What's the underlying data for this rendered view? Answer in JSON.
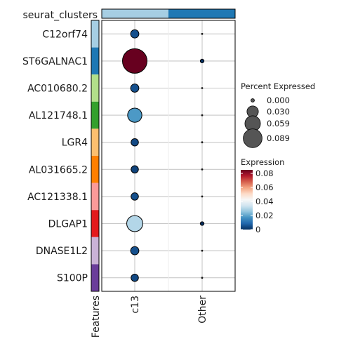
{
  "chart_data": {
    "type": "dotplot",
    "top_annotation_label": "seurat_clusters",
    "top_annotation": [
      {
        "group": "c13",
        "color": "#a6cee3"
      },
      {
        "group": "Other",
        "color": "#1f78b4"
      }
    ],
    "features_label": "Features",
    "groups": [
      "c13",
      "Other"
    ],
    "features": [
      "C12orf74",
      "ST6GALNAC1",
      "AC010680.2",
      "AL121748.1",
      "LGR4",
      "AL031665.2",
      "AC121338.1",
      "DLGAP1",
      "DNASE1L2",
      "S100P"
    ],
    "feature_colors": [
      "#a6cee3",
      "#1f78b4",
      "#b2df8a",
      "#33a02c",
      "#fdbf6f",
      "#ff7f00",
      "#fb9a99",
      "#e31a1c",
      "#cab2d6",
      "#6a3d9a"
    ],
    "pct_expressed": [
      [
        0.01,
        0.0
      ],
      [
        0.089,
        0.002
      ],
      [
        0.01,
        0.0
      ],
      [
        0.03,
        0.0
      ],
      [
        0.008,
        0.0
      ],
      [
        0.008,
        0.0
      ],
      [
        0.008,
        0.0
      ],
      [
        0.038,
        0.002
      ],
      [
        0.01,
        0.0
      ],
      [
        0.008,
        0.0
      ]
    ],
    "expression": [
      [
        0.005,
        0.0
      ],
      [
        0.085,
        0.0
      ],
      [
        0.005,
        0.0
      ],
      [
        0.018,
        0.0
      ],
      [
        0.004,
        0.0
      ],
      [
        0.003,
        0.0
      ],
      [
        0.005,
        0.0
      ],
      [
        0.03,
        0.0
      ],
      [
        0.005,
        0.0
      ],
      [
        0.004,
        0.0
      ]
    ],
    "size_legend": {
      "title": "Percent Expressed",
      "labels": [
        "0.000",
        "0.030",
        "0.059",
        "0.089"
      ],
      "values": [
        0.0,
        0.03,
        0.059,
        0.089
      ]
    },
    "color_legend": {
      "title": "Expression",
      "ticks": [
        0.08,
        0.06,
        0.04,
        0.02,
        0
      ],
      "tick_labels": [
        "0.08",
        "0.06",
        "0.04",
        "0.02",
        "0"
      ],
      "range": [
        0,
        0.085
      ],
      "colors": [
        "#053061",
        "#2166ac",
        "#4393c3",
        "#92c5de",
        "#d1e5f0",
        "#f7f7f7",
        "#fddbc7",
        "#f4a582",
        "#d6604d",
        "#b2182b",
        "#67001f"
      ]
    }
  }
}
